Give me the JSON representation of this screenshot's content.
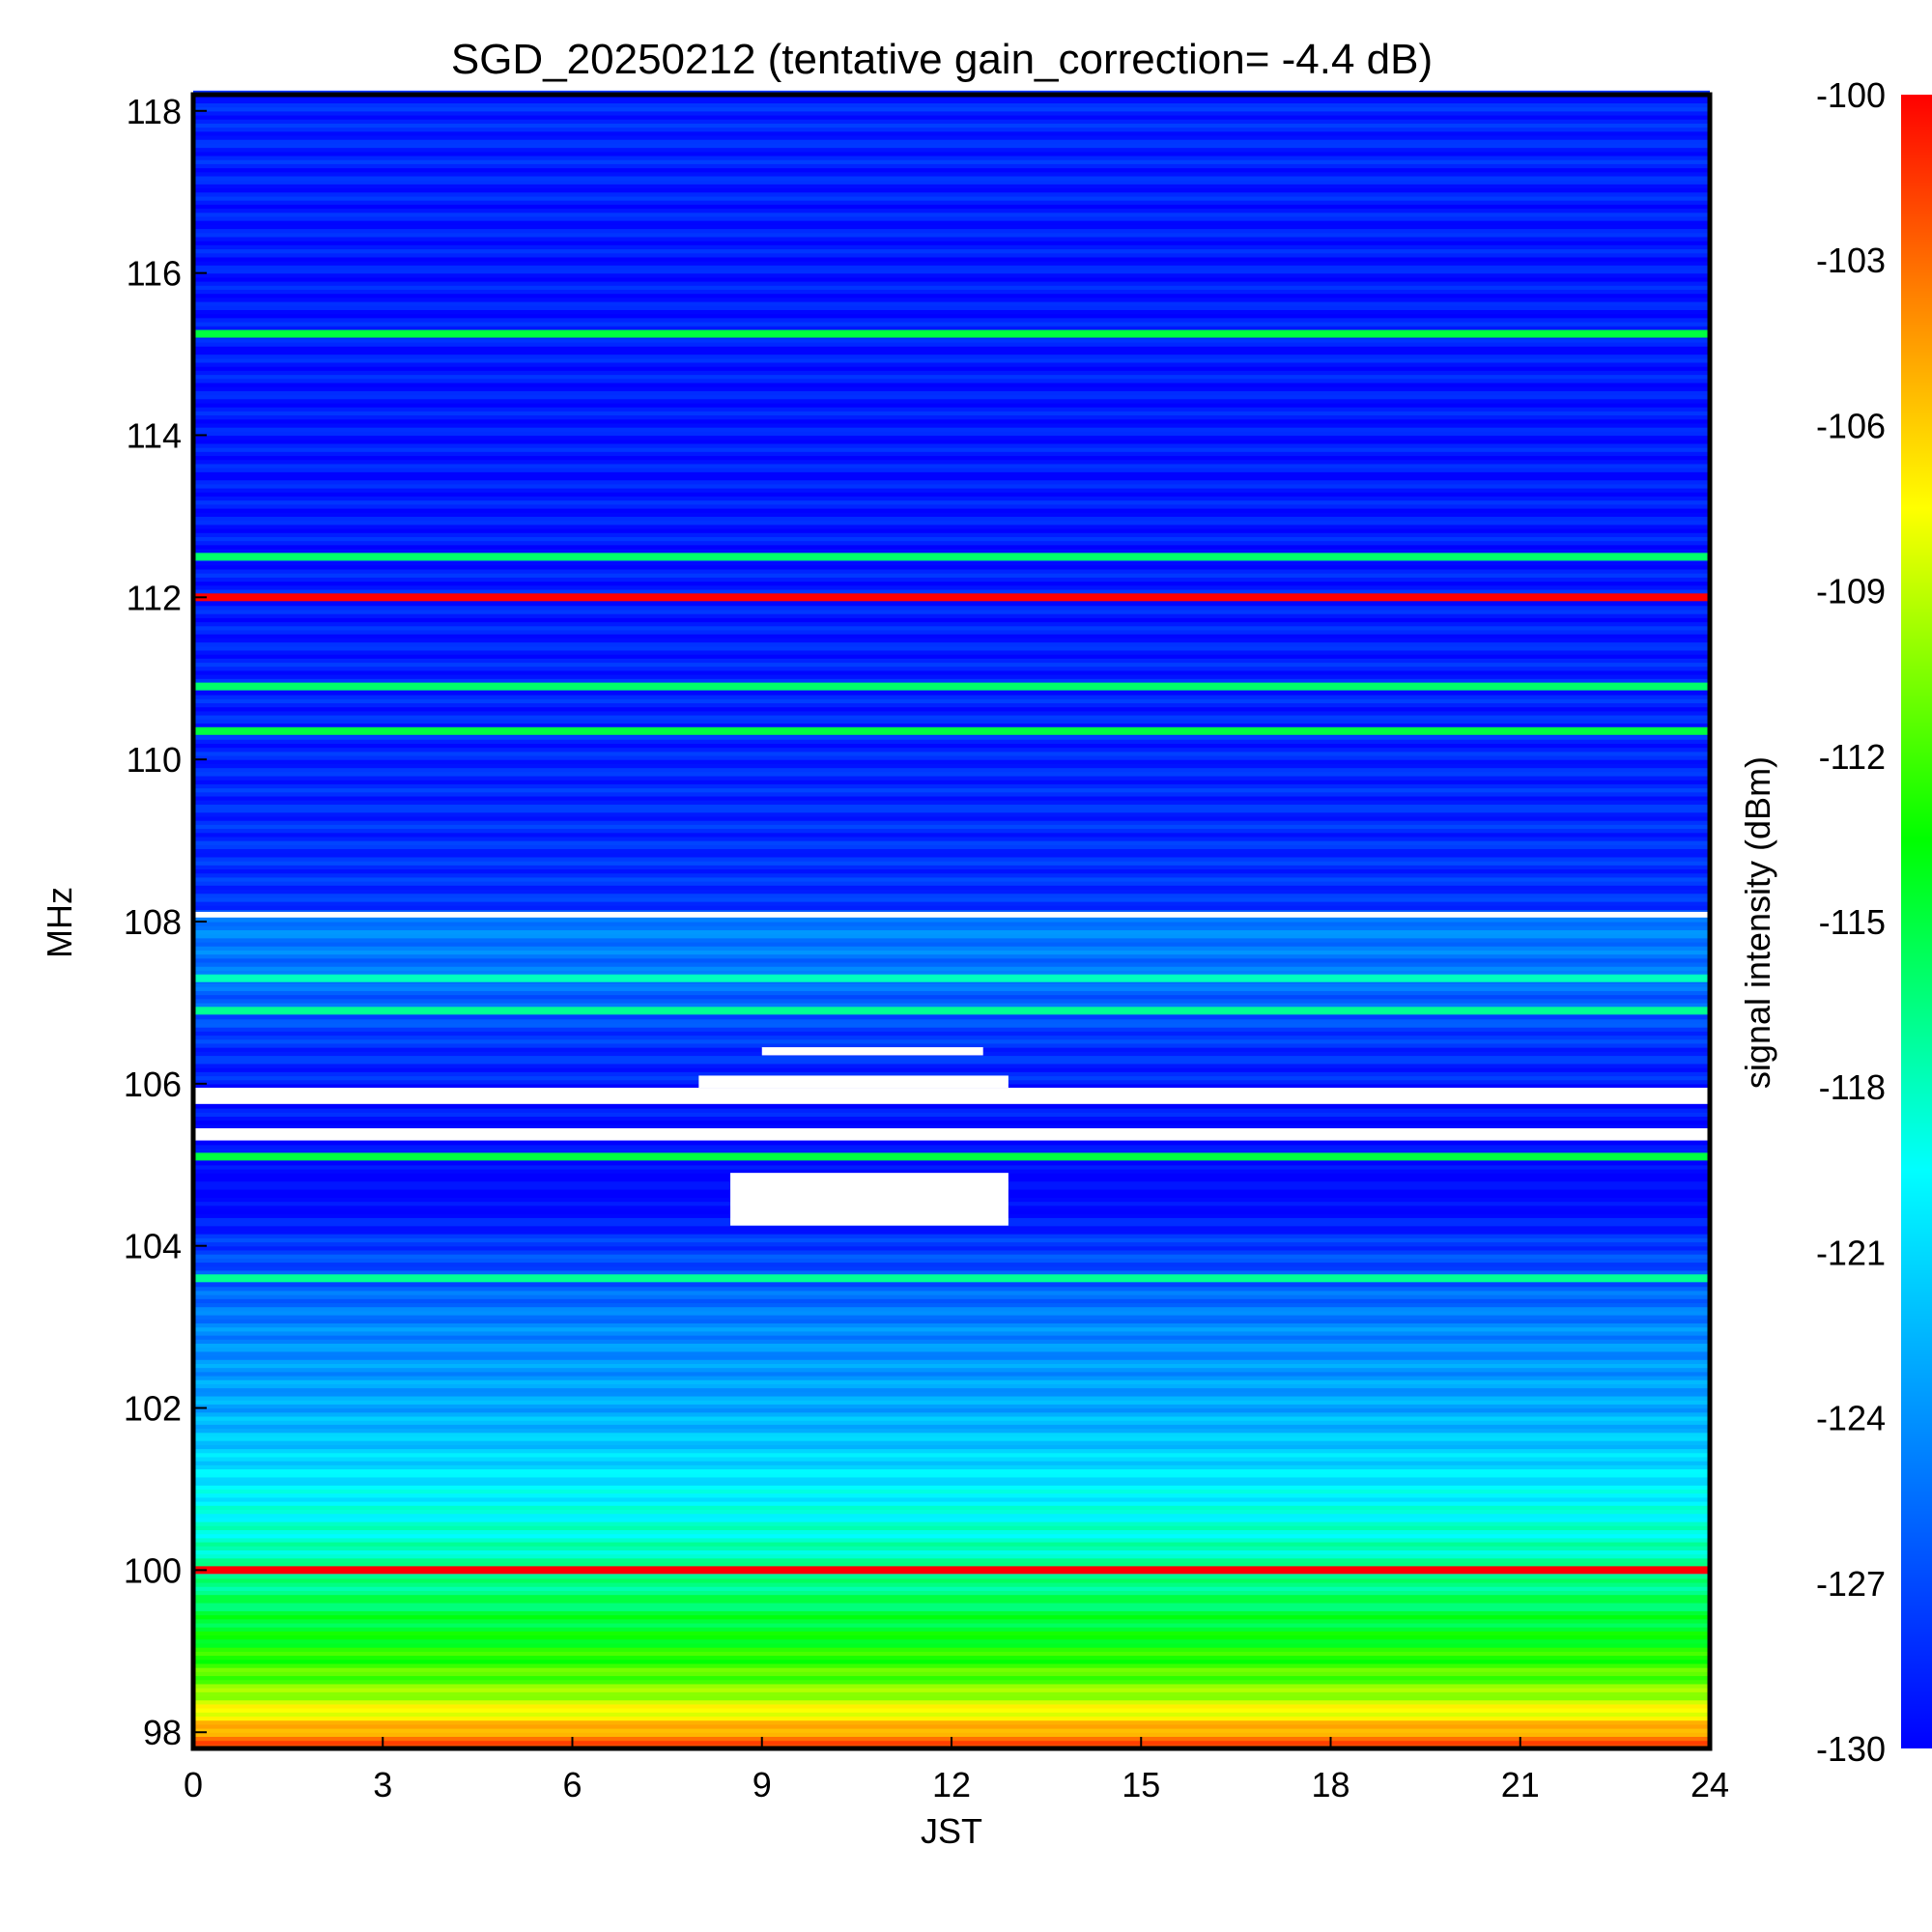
{
  "chart_data": {
    "type": "heatmap",
    "title": "SGD_20250212 (tentative gain_correction= -4.4 dB)",
    "xlabel": "JST",
    "ylabel": "MHz",
    "colorbar_label": "signal intensity (dBm)",
    "x_ticks": [
      "0",
      "3",
      "6",
      "9",
      "12",
      "15",
      "18",
      "21",
      "24"
    ],
    "y_ticks": [
      "98",
      "100",
      "102",
      "104",
      "106",
      "108",
      "110",
      "112",
      "114",
      "116",
      "118"
    ],
    "colorbar_ticks": [
      "-100",
      "-103",
      "-106",
      "-109",
      "-112",
      "-115",
      "-118",
      "-121",
      "-124",
      "-127",
      "-130"
    ],
    "xlim": [
      0,
      24
    ],
    "ylim": [
      97.8,
      118.2
    ],
    "clim": [
      -130,
      -100
    ],
    "colormap": "rainbow (blue = -130 dBm, red = -100 dBm)",
    "grid": false,
    "background_profile_mhz_dbm": [
      [
        97.8,
        -102
      ],
      [
        98.2,
        -107
      ],
      [
        98.6,
        -111
      ],
      [
        99.2,
        -114
      ],
      [
        99.9,
        -117
      ],
      [
        101,
        -120
      ],
      [
        102,
        -123
      ],
      [
        103,
        -124.5
      ],
      [
        104,
        -127.5
      ],
      [
        104.5,
        -130
      ],
      [
        105,
        -130
      ],
      [
        106.5,
        -128
      ],
      [
        107,
        -126
      ],
      [
        108,
        -124.5
      ],
      [
        108.2,
        -128
      ],
      [
        110,
        -128.5
      ],
      [
        113,
        -129
      ],
      [
        116,
        -129
      ],
      [
        118.2,
        -128.5
      ]
    ],
    "persistent_signals": [
      {
        "freq_mhz": 100.0,
        "intensity_dbm": -100
      },
      {
        "freq_mhz": 112.0,
        "intensity_dbm": -100
      },
      {
        "freq_mhz": 105.1,
        "intensity_dbm": -115
      },
      {
        "freq_mhz": 110.35,
        "intensity_dbm": -115
      },
      {
        "freq_mhz": 110.9,
        "intensity_dbm": -116
      },
      {
        "freq_mhz": 112.5,
        "intensity_dbm": -116
      },
      {
        "freq_mhz": 115.25,
        "intensity_dbm": -115
      },
      {
        "freq_mhz": 103.6,
        "intensity_dbm": -117
      },
      {
        "freq_mhz": 106.9,
        "intensity_dbm": -117
      },
      {
        "freq_mhz": 107.3,
        "intensity_dbm": -118
      }
    ],
    "no_data_bands_mhz": [
      {
        "from": 104.25,
        "to": 104.9,
        "jst_from": 8.5,
        "jst_to": 12.9
      },
      {
        "from": 105.3,
        "to": 105.45
      },
      {
        "from": 105.75,
        "to": 105.95
      },
      {
        "from": 105.95,
        "to": 106.1,
        "jst_from": 8.0,
        "jst_to": 12.9
      },
      {
        "from": 106.35,
        "to": 106.45,
        "jst_from": 9.0,
        "jst_to": 12.5
      },
      {
        "from": 108.05,
        "to": 108.12
      }
    ]
  }
}
